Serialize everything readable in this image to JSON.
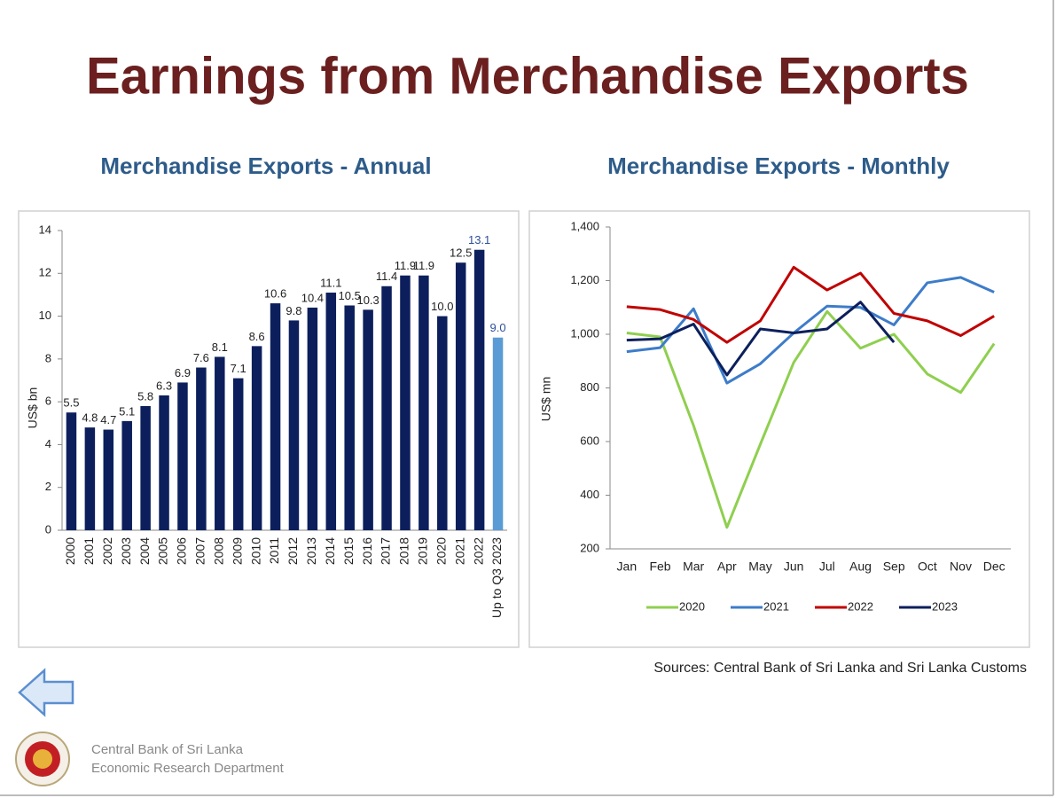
{
  "header": {
    "title": "Earnings from Merchandise Exports"
  },
  "chart_data": [
    {
      "type": "bar",
      "title": "Merchandise Exports - Annual",
      "y_label": "US$ bn",
      "categories": [
        "2000",
        "2001",
        "2002",
        "2003",
        "2004",
        "2005",
        "2006",
        "2007",
        "2008",
        "2009",
        "2010",
        "2011",
        "2012",
        "2013",
        "2014",
        "2015",
        "2016",
        "2017",
        "2018",
        "2019",
        "2020",
        "2021",
        "2022",
        "Up to Q3 2023"
      ],
      "values": [
        5.5,
        4.8,
        4.7,
        5.1,
        5.8,
        6.3,
        6.9,
        7.6,
        8.1,
        7.1,
        8.6,
        10.6,
        9.8,
        10.4,
        11.1,
        10.5,
        10.3,
        11.4,
        11.9,
        11.9,
        10.0,
        12.5,
        13.1,
        9.0
      ],
      "value_labels": [
        "5.5",
        "4.8",
        "4.7",
        "5.1",
        "5.8",
        "6.3",
        "6.9",
        "7.6",
        "8.1",
        "7.1",
        "8.6",
        "10.6",
        "9.8",
        "10.4",
        "11.1",
        "10.5",
        "10.3",
        "11.4",
        "11.9",
        "11.9",
        "10.0",
        "12.5",
        "13.1",
        "9.0"
      ],
      "colors": [
        "#0c1f5c",
        "#0c1f5c",
        "#0c1f5c",
        "#0c1f5c",
        "#0c1f5c",
        "#0c1f5c",
        "#0c1f5c",
        "#0c1f5c",
        "#0c1f5c",
        "#0c1f5c",
        "#0c1f5c",
        "#0c1f5c",
        "#0c1f5c",
        "#0c1f5c",
        "#0c1f5c",
        "#0c1f5c",
        "#0c1f5c",
        "#0c1f5c",
        "#0c1f5c",
        "#0c1f5c",
        "#0c1f5c",
        "#0c1f5c",
        "#0c1f5c",
        "#5b9bd5"
      ],
      "label_colors": [
        "#222222",
        "#222222",
        "#222222",
        "#222222",
        "#222222",
        "#222222",
        "#222222",
        "#222222",
        "#222222",
        "#222222",
        "#222222",
        "#222222",
        "#222222",
        "#222222",
        "#222222",
        "#222222",
        "#222222",
        "#222222",
        "#222222",
        "#222222",
        "#222222",
        "#222222",
        "#2e4f9a",
        "#2e4f9a"
      ],
      "ylim": [
        0,
        14
      ],
      "yticks": [
        0,
        2,
        4,
        6,
        8,
        10,
        12,
        14
      ],
      "grid": false
    },
    {
      "type": "line",
      "title": "Merchandise Exports - Monthly",
      "y_label": "US$ mn",
      "categories": [
        "Jan",
        "Feb",
        "Mar",
        "Apr",
        "May",
        "Jun",
        "Jul",
        "Aug",
        "Sep",
        "Oct",
        "Nov",
        "Dec"
      ],
      "series": [
        {
          "name": "2020",
          "color": "#8fcf4f",
          "values": [
            1005,
            990,
            660,
            280,
            590,
            895,
            1085,
            948,
            1000,
            852,
            783,
            965
          ]
        },
        {
          "name": "2021",
          "color": "#3d7cc9",
          "values": [
            935,
            950,
            1095,
            818,
            890,
            1005,
            1105,
            1100,
            1035,
            1192,
            1212,
            1157
          ]
        },
        {
          "name": "2022",
          "color": "#c00000",
          "values": [
            1103,
            1092,
            1055,
            970,
            1050,
            1250,
            1165,
            1228,
            1078,
            1050,
            995,
            1068
          ]
        },
        {
          "name": "2023",
          "color": "#0c1f5c",
          "values": [
            978,
            983,
            1038,
            848,
            1020,
            1005,
            1020,
            1120,
            970,
            null,
            null,
            null
          ]
        }
      ],
      "ylim": [
        200,
        1400
      ],
      "yticks": [
        200,
        400,
        600,
        800,
        {
          "value": 1000,
          "label": "1,000"
        },
        {
          "value": 1200,
          "label": "1,200"
        },
        {
          "value": 1400,
          "label": "1,400"
        }
      ],
      "grid": false,
      "legend": "bottom"
    }
  ],
  "sources": "Sources: Central Bank of Sri Lanka and Sri Lanka Customs",
  "footer": {
    "line1": "Central Bank of Sri Lanka",
    "line2": "Economic Research Department"
  }
}
